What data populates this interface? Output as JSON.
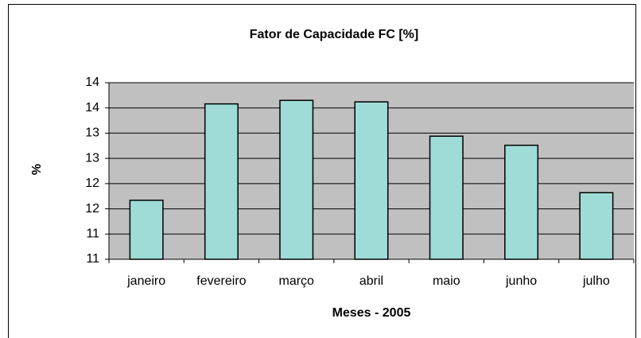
{
  "chart_data": {
    "type": "bar",
    "title": "Fator de Capacidade FC [%]",
    "x_label": "Meses - 2005",
    "y_label": "%",
    "categories": [
      "janeiro",
      "fevereiro",
      "março",
      "abril",
      "maio",
      "junho",
      "julho"
    ],
    "values": [
      12.17,
      14.08,
      14.15,
      14.12,
      13.44,
      13.26,
      12.32
    ],
    "color": "#9fdcd8",
    "ylim": [
      11,
      14.5
    ],
    "yticks": [
      11,
      {
        "value": 11.5,
        "label": "11"
      },
      12,
      {
        "value": 12.5,
        "label": "12"
      },
      13,
      {
        "value": 13.5,
        "label": "13"
      },
      14,
      {
        "value": 14.5,
        "label": "14"
      }
    ],
    "grid": true
  }
}
